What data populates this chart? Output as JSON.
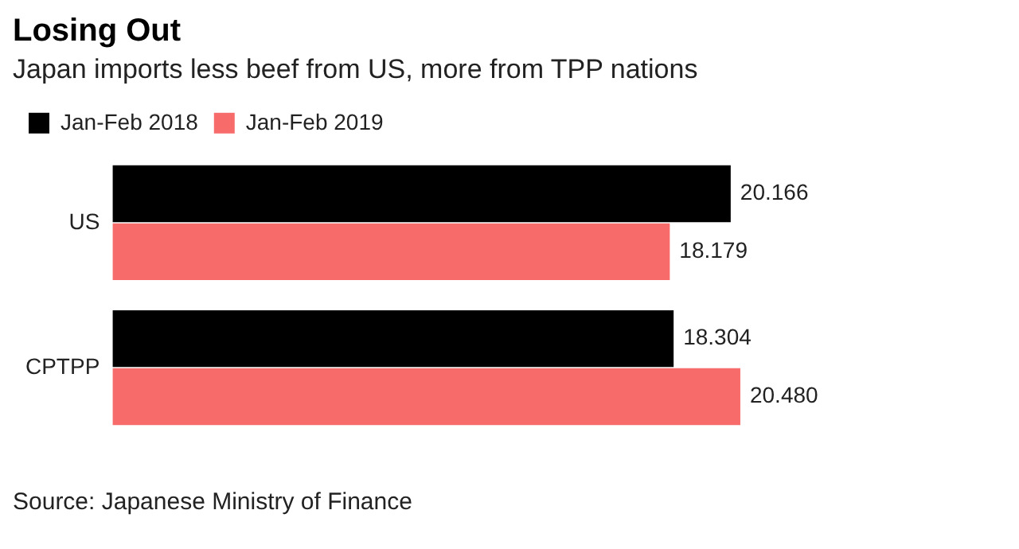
{
  "chart_data": {
    "type": "bar",
    "orientation": "horizontal",
    "title": "Losing Out",
    "subtitle": "Japan imports less beef from US, more from TPP nations",
    "categories": [
      "US",
      "CPTPP"
    ],
    "series": [
      {
        "name": "Jan-Feb 2018",
        "color": "#000000",
        "values": [
          20.166,
          18.304
        ],
        "value_labels": [
          "20.166",
          "18.304"
        ]
      },
      {
        "name": "Jan-Feb 2019",
        "color": "#f86b6b",
        "values": [
          18.179,
          20.48
        ],
        "value_labels": [
          "18.179",
          "20.480"
        ]
      }
    ],
    "legend": "top left",
    "tick_labels": "y",
    "annotations": [
      "Source: Japanese Ministry of Finance"
    ]
  }
}
